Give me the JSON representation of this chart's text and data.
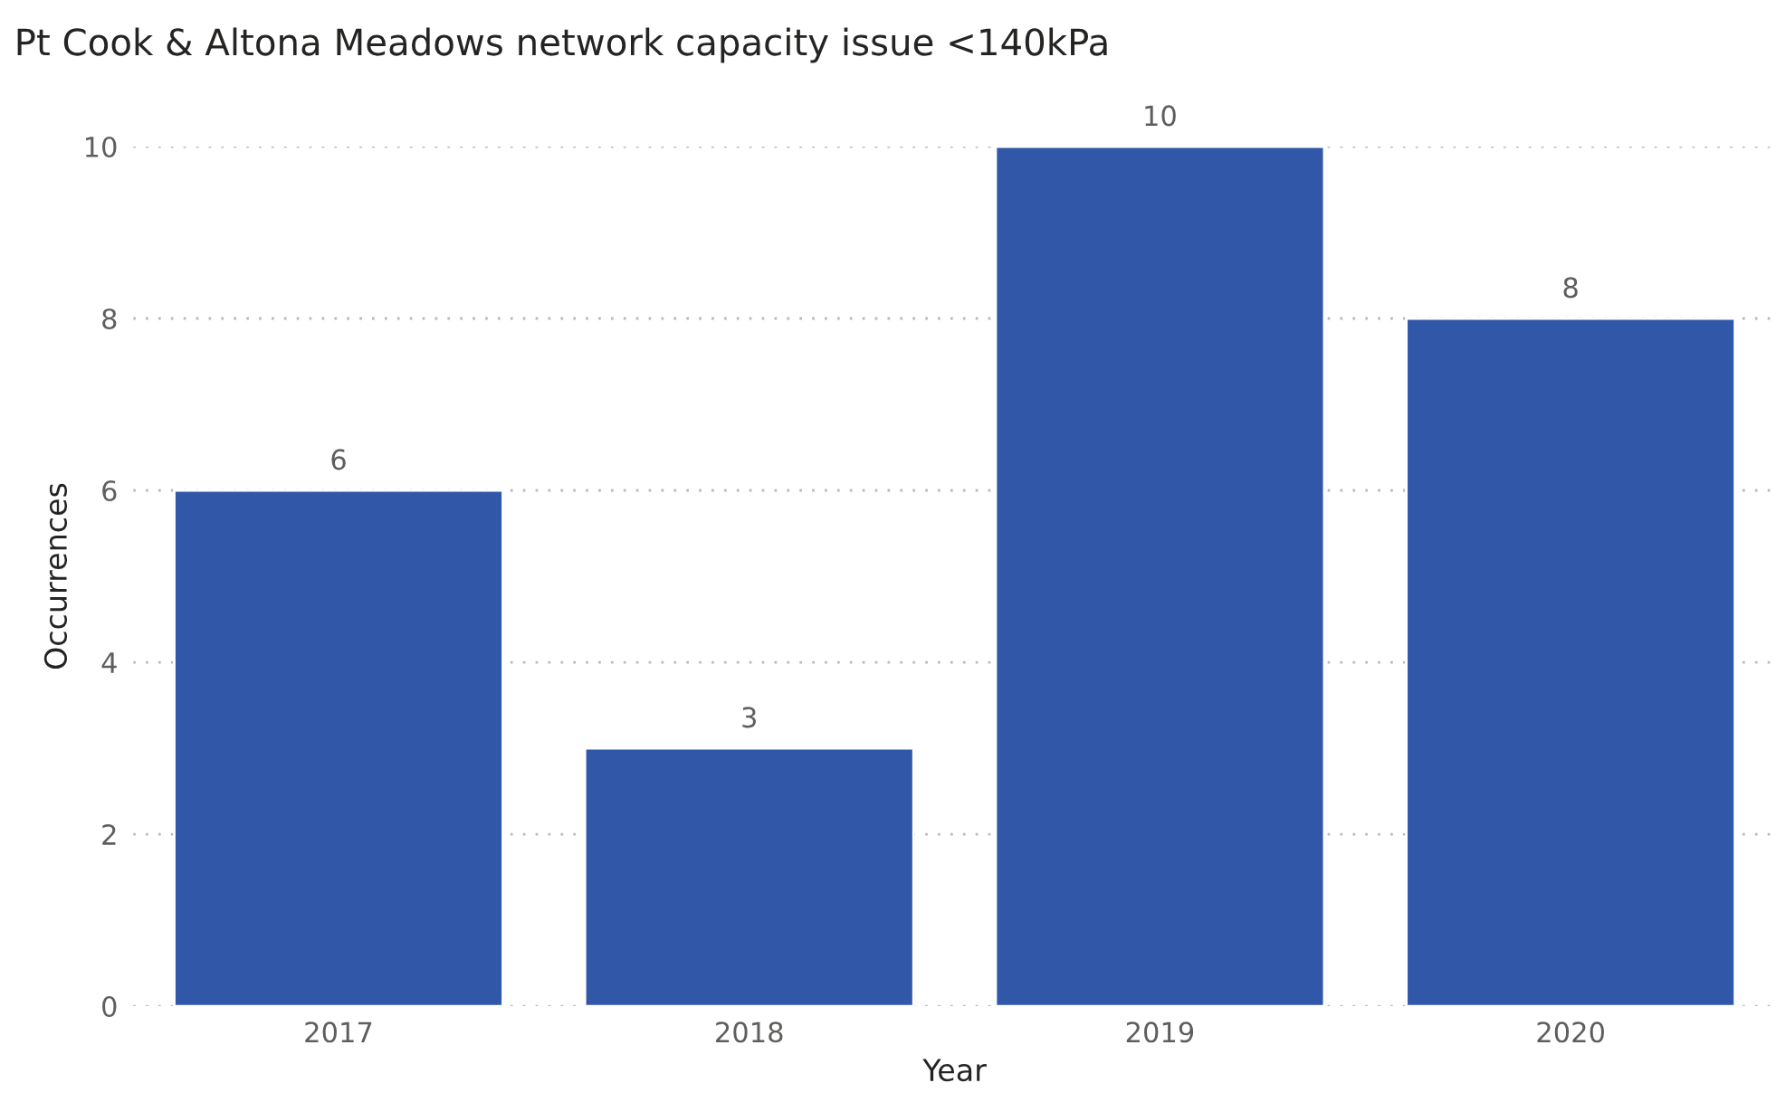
{
  "chart_data": {
    "type": "bar",
    "title": "Pt Cook & Altona Meadows network capacity issue <140kPa",
    "xlabel": "Year",
    "ylabel": "Occurrences",
    "categories": [
      "2017",
      "2018",
      "2019",
      "2020"
    ],
    "values": [
      6,
      3,
      10,
      8
    ],
    "color": "#3157a8",
    "ylim": [
      0,
      10
    ],
    "yticks": [
      0,
      2,
      4,
      6,
      8,
      10
    ],
    "grid": "y",
    "data_labels": true
  }
}
